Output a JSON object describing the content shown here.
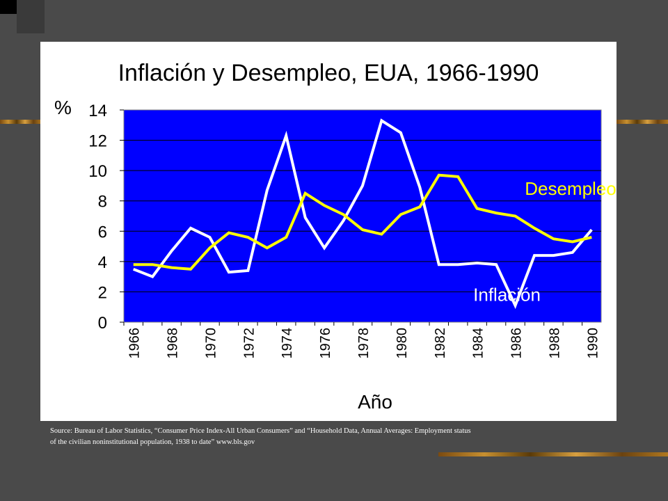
{
  "chart_data": {
    "type": "line",
    "title": "Inflación y Desempleo, EUA, 1966-1990",
    "ylabel": "%",
    "xlabel": "Año",
    "ylim": [
      0,
      14
    ],
    "yticks": [
      0,
      2,
      4,
      6,
      8,
      10,
      12,
      14
    ],
    "x": [
      1966,
      1967,
      1968,
      1969,
      1970,
      1971,
      1972,
      1973,
      1974,
      1975,
      1976,
      1977,
      1978,
      1979,
      1980,
      1981,
      1982,
      1983,
      1984,
      1985,
      1986,
      1987,
      1988,
      1989,
      1990
    ],
    "xtick_labels": [
      "1966",
      "1968",
      "1970",
      "1972",
      "1974",
      "1976",
      "1978",
      "1980",
      "1982",
      "1984",
      "1986",
      "1988",
      "1990"
    ],
    "grid": true,
    "plot_background": "#0000ff",
    "series": [
      {
        "name": "Inflación",
        "color": "#ffffff",
        "values": [
          3.5,
          3.0,
          4.7,
          6.2,
          5.6,
          3.3,
          3.4,
          8.7,
          12.3,
          6.9,
          4.9,
          6.7,
          9.0,
          13.3,
          12.5,
          8.9,
          3.8,
          3.8,
          3.9,
          3.8,
          1.1,
          4.4,
          4.4,
          4.6,
          6.1
        ]
      },
      {
        "name": "Desempleo",
        "color": "#ffff00",
        "values": [
          3.8,
          3.8,
          3.6,
          3.5,
          4.9,
          5.9,
          5.6,
          4.9,
          5.6,
          8.5,
          7.7,
          7.1,
          6.1,
          5.8,
          7.1,
          7.6,
          9.7,
          9.6,
          7.5,
          7.2,
          7.0,
          6.2,
          5.5,
          5.3,
          5.6
        ]
      }
    ]
  },
  "source": {
    "line1": "Source:  Bureau of Labor Statistics, “Consumer Price  Index-All Urban Consumers” and “Household Data, Annual Averages:  Employment status",
    "line2": "of the civilian noninstitutional population, 1938 to date”  www.bls.gov"
  }
}
